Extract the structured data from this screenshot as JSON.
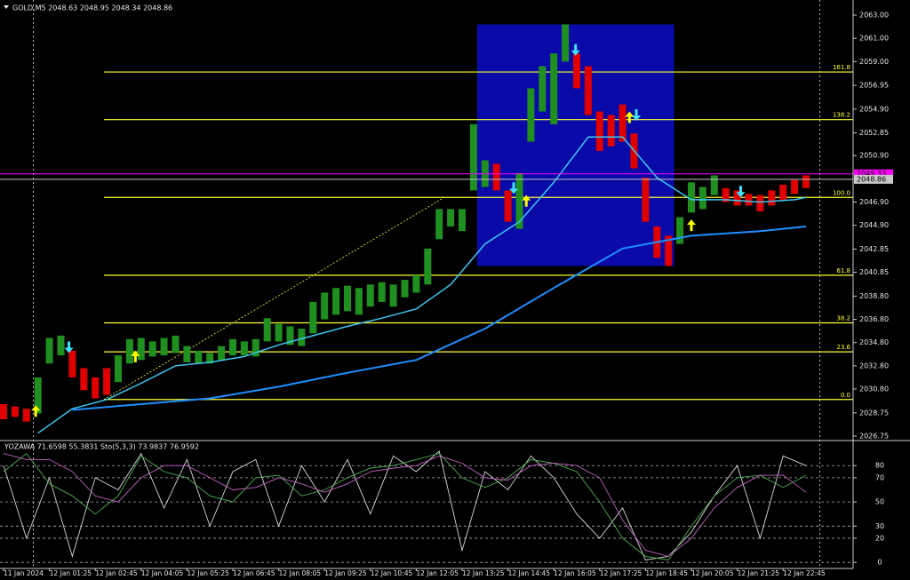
{
  "chart_data": [
    {
      "type": "price-bars",
      "title": "GOLD,M5  2048.63 2048.95 2048.34 2048.86",
      "xlim": [
        -0.31,
        74.11
      ],
      "ylim": [
        2026.44,
        2064.3
      ],
      "yticks": [
        {
          "value": 2063,
          "label": "2063.00"
        },
        {
          "value": 2061,
          "label": "2061.00"
        },
        {
          "value": 2059,
          "label": "2059.00"
        },
        2056.95,
        {
          "value": 2054.9,
          "label": "2054.90"
        },
        2052.85,
        {
          "value": 2050.9,
          "label": "2050.90"
        },
        {
          "value": 2046.9,
          "label": "2046.90"
        },
        {
          "value": 2044.9,
          "label": "2044.90"
        },
        2042.85,
        2040.85,
        {
          "value": 2038.8,
          "label": "2038.80"
        },
        {
          "value": 2036.8,
          "label": "2036.80"
        },
        {
          "value": 2034.8,
          "label": "2034.80"
        },
        {
          "value": 2032.8,
          "label": "2032.80"
        },
        {
          "value": 2030.8,
          "label": "2030.80"
        },
        2028.75,
        2026.75
      ],
      "high": [
        2029.5,
        2029.3,
        2029.1,
        2031.8,
        2035.2,
        2035.4,
        2034.1,
        2032.6,
        2031.8,
        2032.6,
        2033.7,
        2035.1,
        2035.2,
        2034.9,
        2035.2,
        2035.4,
        2034.5,
        2034.1,
        2033.9,
        2034.5,
        2035.1,
        2034.9,
        2035.1,
        2036.9,
        2036.4,
        2036.2,
        2036.0,
        2038.3,
        2039.1,
        2039.5,
        2039.7,
        2039.5,
        2039.8,
        2040.0,
        2039.8,
        2040.2,
        2040.6,
        2042.9,
        2046.3,
        2046.3,
        2046.3,
        2053.6,
        2050.5,
        2050.2,
        2047.9,
        2049.4,
        2056.7,
        2058.6,
        2059.7,
        2062.2,
        2059.7,
        2058.6,
        2054.7,
        2054.4,
        2055.3,
        2052.8,
        2049.0,
        2044.8,
        2044.0,
        2045.6,
        2048.6,
        2048.2,
        2049.2,
        2048.1,
        2047.9,
        2047.6,
        2047.5,
        2047.9,
        2048.4,
        2048.8,
        2049.2
      ],
      "low": [
        2028.2,
        2028.4,
        2028.0,
        2028.7,
        2033.0,
        2033.7,
        2031.8,
        2030.7,
        2030.0,
        2030.3,
        2031.4,
        2033.0,
        2033.3,
        2033.6,
        2033.7,
        2033.9,
        2033.1,
        2033.0,
        2033.0,
        2033.3,
        2033.7,
        2033.7,
        2033.6,
        2034.9,
        2034.9,
        2034.6,
        2034.5,
        2035.6,
        2036.8,
        2037.2,
        2037.5,
        2037.2,
        2037.9,
        2038.3,
        2037.9,
        2038.7,
        2039.1,
        2039.8,
        2043.7,
        2044.8,
        2044.4,
        2047.9,
        2048.2,
        2047.9,
        2045.2,
        2044.6,
        2052.1,
        2054.7,
        2053.6,
        2059.0,
        2056.7,
        2054.4,
        2051.3,
        2051.7,
        2052.1,
        2049.8,
        2045.2,
        2042.1,
        2041.4,
        2043.3,
        2046.0,
        2046.3,
        2047.5,
        2046.9,
        2046.6,
        2046.6,
        2046.1,
        2046.6,
        2047.1,
        2047.6,
        2048.1
      ],
      "direction": [
        "down",
        "down",
        "down",
        "up",
        "up",
        "up",
        "down",
        "down",
        "down",
        "down",
        "up",
        "up",
        "up",
        "up",
        "up",
        "up",
        "up",
        "up",
        "up",
        "up",
        "up",
        "up",
        "up",
        "up",
        "up",
        "up",
        "up",
        "up",
        "up",
        "up",
        "up",
        "up",
        "up",
        "up",
        "up",
        "up",
        "up",
        "up",
        "up",
        "up",
        "up",
        "up",
        "up",
        "down",
        "down",
        "up",
        "up",
        "up",
        "up",
        "up",
        "down",
        "down",
        "down",
        "down",
        "down",
        "down",
        "down",
        "down",
        "down",
        "up",
        "up",
        "up",
        "up",
        "down",
        "down",
        "down",
        "down",
        "down",
        "down",
        "down",
        "down"
      ],
      "up_color": "#1f8f1f",
      "down_color": "#e00000",
      "lines": [
        {
          "color": "#3cc8f0",
          "width": 1.5,
          "x": [
            3,
            6,
            9,
            12,
            15,
            18,
            21,
            24,
            27,
            30,
            33,
            36,
            39,
            42,
            45,
            48,
            51,
            54,
            57,
            60,
            63,
            66,
            69,
            70
          ],
          "values": [
            2027.0,
            2029.1,
            2029.9,
            2031.3,
            2032.8,
            2033.1,
            2033.6,
            2034.6,
            2035.4,
            2036.2,
            2036.9,
            2037.7,
            2039.8,
            2043.3,
            2045.2,
            2048.6,
            2052.5,
            2052.5,
            2049.0,
            2047.1,
            2047.1,
            2046.9,
            2047.1,
            2047.3
          ]
        },
        {
          "color": "#1e8fff",
          "width": 2,
          "x": [
            6,
            12,
            18,
            24,
            30,
            36,
            42,
            48,
            54,
            60,
            66,
            70
          ],
          "values": [
            2029.0,
            2029.5,
            2030.0,
            2031.0,
            2032.2,
            2033.3,
            2036.0,
            2039.5,
            2042.9,
            2044.0,
            2044.4,
            2044.8
          ]
        }
      ],
      "zone": {
        "x": [
          41.3,
          58.5
        ],
        "y": [
          2041.4,
          2062.2
        ],
        "color": "#0a0aa8"
      },
      "level_color": "#ffff33",
      "levels": [
        {
          "label": "161.8",
          "value": 2058.1
        },
        {
          "label": "138.2",
          "value": 2054.0
        },
        {
          "label": "100.0",
          "value": 2047.3
        },
        {
          "label": "61.8",
          "value": 2040.6
        },
        {
          "label": "38.2",
          "value": 2036.5
        },
        {
          "label": "23.6",
          "value": 2034.0
        },
        {
          "label": "0.0",
          "value": 2029.9
        }
      ],
      "arrow_colors": {
        "up": "#ffff00",
        "down": "#40e0ff"
      },
      "arrows": [
        {
          "x": 5.7,
          "y": 2033.9,
          "dir": "down"
        },
        {
          "x": 44.5,
          "y": 2047.6,
          "dir": "down"
        },
        {
          "x": 49.9,
          "y": 2059.5,
          "dir": "down"
        },
        {
          "x": 55.2,
          "y": 2053.9,
          "dir": "down"
        },
        {
          "x": 64.3,
          "y": 2047.3,
          "dir": "down"
        },
        {
          "x": 2.8,
          "y": 2029.4,
          "dir": "up"
        },
        {
          "x": 11.5,
          "y": 2034.1,
          "dir": "up"
        },
        {
          "x": 45.6,
          "y": 2047.5,
          "dir": "up"
        },
        {
          "x": 54.6,
          "y": 2054.7,
          "dir": "up"
        },
        {
          "x": 60.0,
          "y": 2045.4,
          "dir": "up"
        }
      ],
      "price_lines": [
        {
          "value": 2049.33,
          "label": "2049.33",
          "color": "#ff00ff"
        },
        {
          "value": 2048.86,
          "label": "2048.86",
          "color": "#c8c8c8"
        }
      ],
      "separators": [
        2.6,
        71.2
      ]
    },
    {
      "type": "oscillator",
      "title": "YOZAWA 71.6598 55.3831  Sto(5,3,3) 73.9837 76.9592",
      "xlim": [
        -0.31,
        74.11
      ],
      "ylim": [
        -5,
        100
      ],
      "yticks": [
        80,
        70,
        50,
        30,
        20,
        0
      ],
      "grid": true,
      "xticks": [
        {
          "value": 0,
          "label": "11 Jan 2024"
        },
        {
          "value": 4,
          "label": "12 Jan 01:25"
        },
        {
          "value": 8,
          "label": "12 Jan 02:45"
        },
        {
          "value": 12,
          "label": "12 Jan 04:05"
        },
        {
          "value": 16,
          "label": "12 Jan 05:25"
        },
        {
          "value": 20,
          "label": "12 Jan 06:45"
        },
        {
          "value": 24,
          "label": "12 Jan 08:05"
        },
        {
          "value": 28,
          "label": "12 Jan 09:25"
        },
        {
          "value": 32,
          "label": "12 Jan 10:45"
        },
        {
          "value": 36,
          "label": "12 Jan 12:05"
        },
        {
          "value": 40,
          "label": "12 Jan 13:25"
        },
        {
          "value": 44,
          "label": "12 Jan 14:45"
        },
        {
          "value": 48,
          "label": "12 Jan 16:05"
        },
        {
          "value": 52,
          "label": "12 Jan 17:25"
        },
        {
          "value": 56,
          "label": "12 Jan 18:45"
        },
        {
          "value": 60,
          "label": "12 Jan 20:05"
        },
        {
          "value": 64,
          "label": "12 Jan 21:25"
        },
        {
          "value": 68,
          "label": "12 Jan 22:45"
        }
      ],
      "x": [
        0,
        2,
        4,
        6,
        8,
        10,
        12,
        14,
        16,
        18,
        20,
        22,
        24,
        26,
        28,
        30,
        32,
        34,
        36,
        38,
        40,
        42,
        44,
        46,
        48,
        50,
        52,
        54,
        56,
        58,
        60,
        62,
        64,
        66,
        68,
        70
      ],
      "series": [
        {
          "color": "#d8d8d8",
          "values": [
            80,
            20,
            70,
            5,
            70,
            60,
            90,
            45,
            85,
            30,
            75,
            85,
            30,
            80,
            50,
            85,
            40,
            88,
            75,
            92,
            10,
            75,
            60,
            88,
            70,
            40,
            20,
            45,
            2,
            5,
            25,
            55,
            80,
            20,
            88,
            80
          ]
        },
        {
          "color": "#4caf50",
          "values": [
            75,
            90,
            65,
            55,
            40,
            55,
            88,
            75,
            70,
            55,
            50,
            70,
            72,
            55,
            60,
            70,
            78,
            80,
            85,
            90,
            70,
            62,
            70,
            85,
            82,
            75,
            50,
            20,
            5,
            2,
            30,
            55,
            70,
            72,
            62,
            72
          ]
        },
        {
          "color": "#c060c0",
          "values": [
            90,
            85,
            85,
            75,
            55,
            50,
            70,
            80,
            80,
            70,
            60,
            62,
            70,
            65,
            58,
            65,
            75,
            78,
            80,
            88,
            82,
            70,
            68,
            80,
            82,
            80,
            70,
            35,
            10,
            5,
            20,
            45,
            62,
            72,
            72,
            58
          ]
        }
      ]
    }
  ]
}
